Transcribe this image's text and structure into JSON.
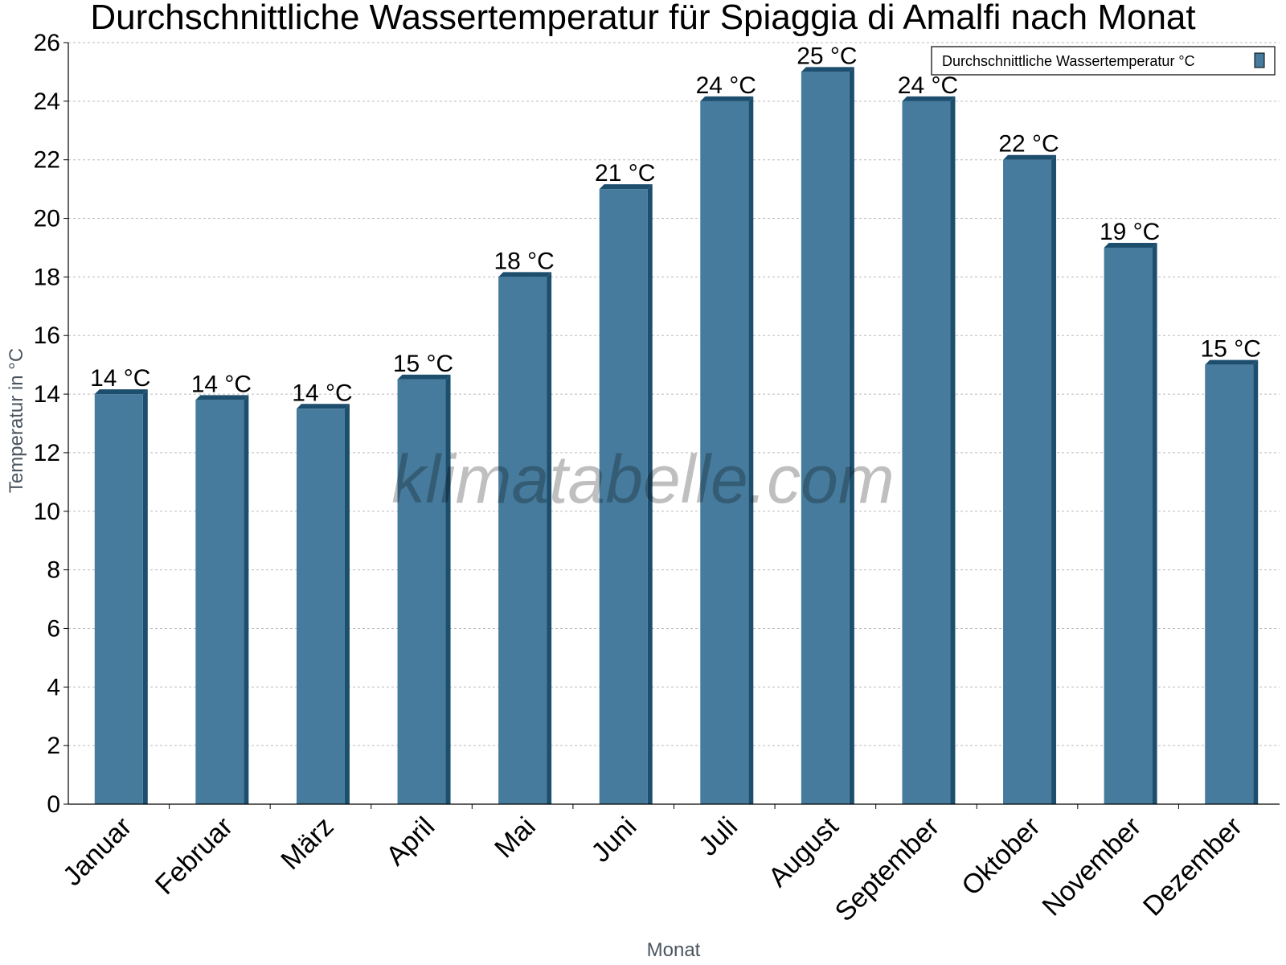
{
  "chart_data": {
    "type": "bar",
    "title": "Durchschnittliche Wassertemperatur für Spiaggia di Amalfi nach Monat",
    "xlabel": "Monat",
    "ylabel": "Temperatur in °C",
    "ylim": [
      0,
      26
    ],
    "yticks": [
      "0",
      "2",
      "4",
      "6",
      "8",
      "10",
      "12",
      "14",
      "16",
      "18",
      "20",
      "22",
      "24",
      "26"
    ],
    "grid": true,
    "legend_position": "top-right",
    "categories": [
      "Januar",
      "Februar",
      "März",
      "April",
      "Mai",
      "Juni",
      "Juli",
      "August",
      "September",
      "Oktober",
      "November",
      "Dezember"
    ],
    "series": [
      {
        "name": "Durchschnittliche Wassertemperatur °C",
        "values": [
          14.0,
          13.8,
          13.5,
          14.5,
          18.0,
          21.0,
          24.0,
          25.0,
          24.0,
          22.0,
          19.0,
          15.0
        ],
        "labels": [
          "14 °C",
          "14 °C",
          "14 °C",
          "15 °C",
          "18 °C",
          "21 °C",
          "24 °C",
          "25 °C",
          "24 °C",
          "22 °C",
          "19 °C",
          "15 °C"
        ]
      }
    ],
    "watermark": "klimatabelle.com",
    "colors": {
      "bar": "#467b9d",
      "bar_side": "#1d4e6e"
    }
  }
}
